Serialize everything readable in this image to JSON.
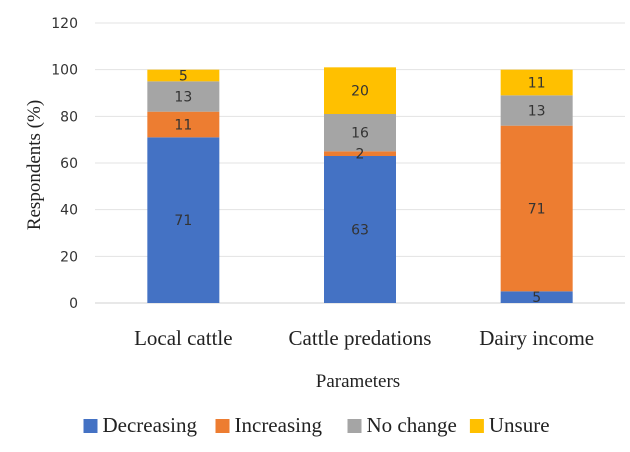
{
  "chart_data": {
    "type": "bar",
    "stacked": true,
    "categories": [
      "Local cattle",
      "Cattle predations",
      "Dairy income"
    ],
    "series": [
      {
        "name": "Decreasing",
        "color": "#4472c4",
        "values": [
          71,
          63,
          5
        ]
      },
      {
        "name": "Increasing",
        "color": "#ed7d31",
        "values": [
          11,
          2,
          71
        ]
      },
      {
        "name": "No change",
        "color": "#a5a5a5",
        "values": [
          13,
          16,
          13
        ]
      },
      {
        "name": "Unsure",
        "color": "#ffc000",
        "values": [
          5,
          20,
          11
        ]
      }
    ],
    "xlabel": "Parameters",
    "ylabel": "Respondents  (%)",
    "ylim": [
      0,
      120
    ],
    "yticks": [
      0,
      20,
      40,
      60,
      80,
      100,
      120
    ],
    "grid": true,
    "legend_position": "bottom"
  }
}
